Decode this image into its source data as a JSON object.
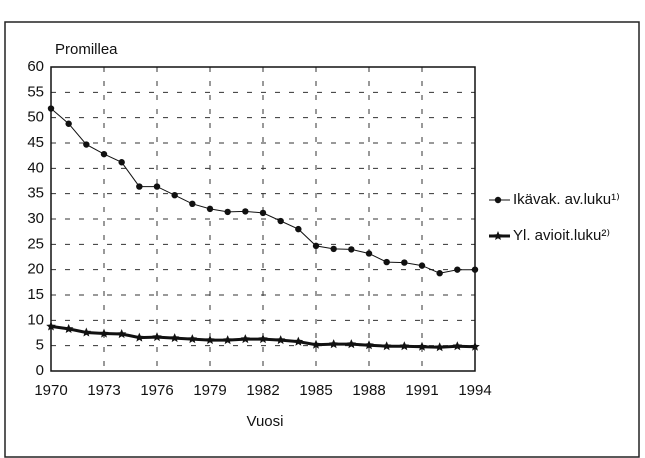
{
  "chart_data": {
    "type": "line",
    "y_label": "Promillea",
    "x_label": "Vuosi",
    "x": [
      1970,
      1971,
      1972,
      1973,
      1974,
      1975,
      1976,
      1977,
      1978,
      1979,
      1980,
      1981,
      1982,
      1983,
      1984,
      1985,
      1986,
      1987,
      1988,
      1989,
      1990,
      1991,
      1992,
      1993,
      1994
    ],
    "series": [
      {
        "name": "Ikävak. av.luku¹⁾",
        "color": "#111111",
        "marker": "circle",
        "width": 1,
        "values": [
          51.8,
          48.8,
          44.7,
          42.8,
          41.2,
          36.4,
          36.4,
          34.7,
          33,
          32,
          31.4,
          31.5,
          31.2,
          29.6,
          28,
          24.7,
          24.1,
          24,
          23.2,
          21.5,
          21.4,
          20.8,
          19.3,
          20,
          20
        ]
      },
      {
        "name": "Yl. avioit.luku²⁾",
        "color": "#111111",
        "marker": "star",
        "width": 3,
        "values": [
          8.8,
          8.3,
          7.6,
          7.4,
          7.3,
          6.6,
          6.7,
          6.5,
          6.3,
          6.1,
          6.1,
          6.3,
          6.3,
          6.1,
          5.8,
          5.2,
          5.3,
          5.3,
          5.1,
          4.9,
          4.9,
          4.8,
          4.7,
          4.9,
          4.8
        ]
      }
    ],
    "xlim": [
      1970,
      1994
    ],
    "xticks": [
      1970,
      1973,
      1976,
      1979,
      1982,
      1985,
      1988,
      1991,
      1994
    ],
    "ylim": [
      0,
      60
    ],
    "yticks": [
      0,
      5,
      10,
      15,
      20,
      25,
      30,
      35,
      40,
      45,
      50,
      55,
      60
    ],
    "grid": true,
    "legend": "right"
  }
}
